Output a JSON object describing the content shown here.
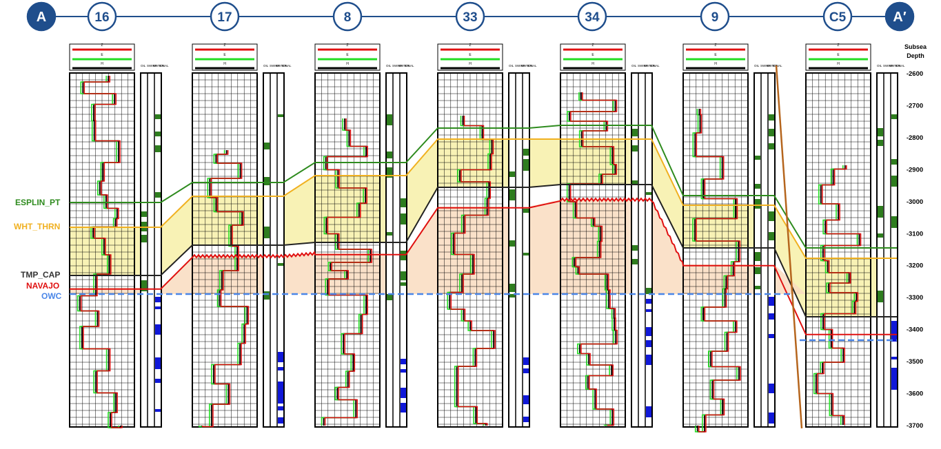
{
  "wells": [
    {
      "label": "A",
      "kind": "end"
    },
    {
      "label": "16",
      "kind": "well"
    },
    {
      "label": "17",
      "kind": "well"
    },
    {
      "label": "8",
      "kind": "well"
    },
    {
      "label": "33",
      "kind": "well"
    },
    {
      "label": "34",
      "kind": "well"
    },
    {
      "label": "9",
      "kind": "well"
    },
    {
      "label": "C5",
      "kind": "well"
    },
    {
      "label": "A′",
      "kind": "end"
    }
  ],
  "depth_axis": {
    "title_line1": "Subsea",
    "title_line2": "Depth",
    "ticks": [
      "-2600",
      "-2700",
      "-2800",
      "-2900",
      "-3000",
      "-3100",
      "-3200",
      "-3300",
      "-3400",
      "-3500",
      "-3600",
      "-3700"
    ]
  },
  "horizons": [
    {
      "name": "ESPLIN_PT",
      "color": "#2e8b1e"
    },
    {
      "name": "WHT_THRN",
      "color": "#f0b020"
    },
    {
      "name": "TMP_CAP",
      "color": "#333333"
    },
    {
      "name": "NAVAJO",
      "color": "#e01010"
    },
    {
      "name": "OWC",
      "color": "#4a86e8"
    }
  ],
  "track_header": {
    "curve_a": "Z",
    "curve_b": "E",
    "curve_c": "H",
    "col_labels": [
      "OIL",
      "SWIRR",
      "WATER",
      "IONAL"
    ]
  },
  "colors": {
    "circle_fill": "#ffffff",
    "circle_stroke": "#1f4e8c",
    "end_fill": "#1f4e8c",
    "line": "#1f4e8c",
    "zone_yellow": "#f7f0a8",
    "zone_peach": "#f9dcc0",
    "fault": "#b5651d",
    "oil_flag": "#2e7d1e",
    "water_flag": "#1018d8"
  }
}
